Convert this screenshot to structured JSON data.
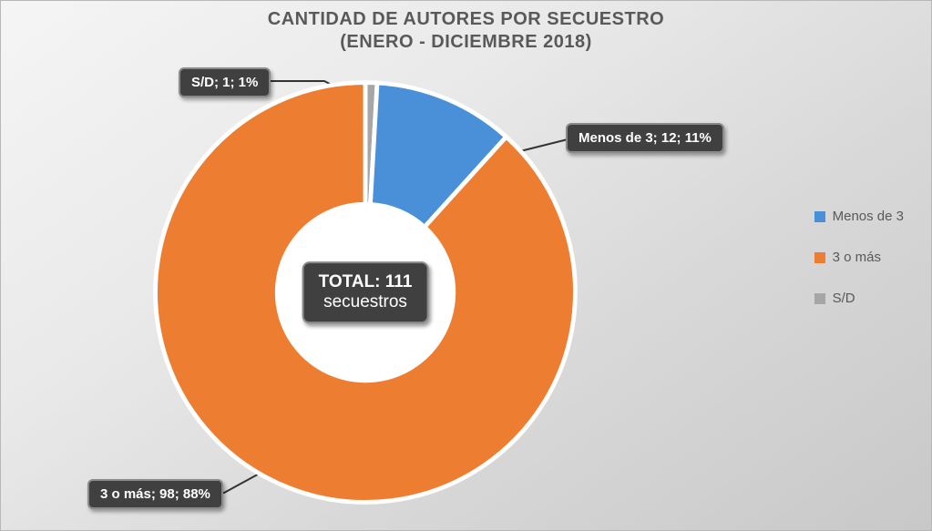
{
  "title_line1": "CANTIDAD DE AUTORES POR SECUESTRO",
  "title_line2": "(ENERO - DICIEMBRE 2018)",
  "title_color": "#595959",
  "title_fontsize": 20,
  "background_gradient_from": "#f5f5f5",
  "background_gradient_to": "#c8c8c8",
  "chart": {
    "type": "donut",
    "inner_radius_ratio": 0.42,
    "start_angle_deg": -90,
    "slices": [
      {
        "key": "sd",
        "label": "S/D",
        "count": 1,
        "percent": 1,
        "color": "#a6a6a6"
      },
      {
        "key": "menos3",
        "label": "Menos de 3",
        "count": 12,
        "percent": 11,
        "color": "#4a90d9"
      },
      {
        "key": "tres",
        "label": "3 o más",
        "count": 98,
        "percent": 88,
        "color": "#ed7d31"
      }
    ],
    "slice_stroke": "#ffffff",
    "slice_stroke_width": 1
  },
  "center_label": {
    "line1_prefix": "TOTAL: ",
    "line1_value": "111",
    "line2": "secuestros",
    "bg": "#404040",
    "fg": "#ffffff",
    "border": "#8a8a8a",
    "fontsize": 19
  },
  "callouts": {
    "sd": {
      "text": "S/D; 1; 1%"
    },
    "menos3": {
      "text": "Menos de 3; 12; 11%"
    },
    "tres": {
      "text": "3 o más; 98; 88%"
    },
    "box_bg": "#404040",
    "box_fg": "#ffffff",
    "box_border": "#8a8a8a",
    "fontsize": 15
  },
  "legend": {
    "items": [
      {
        "label": "Menos de 3",
        "color": "#4a90d9"
      },
      {
        "label": "3 o más",
        "color": "#ed7d31"
      },
      {
        "label": "S/D",
        "color": "#a6a6a6"
      }
    ],
    "fontsize": 15,
    "text_color": "#595959"
  }
}
